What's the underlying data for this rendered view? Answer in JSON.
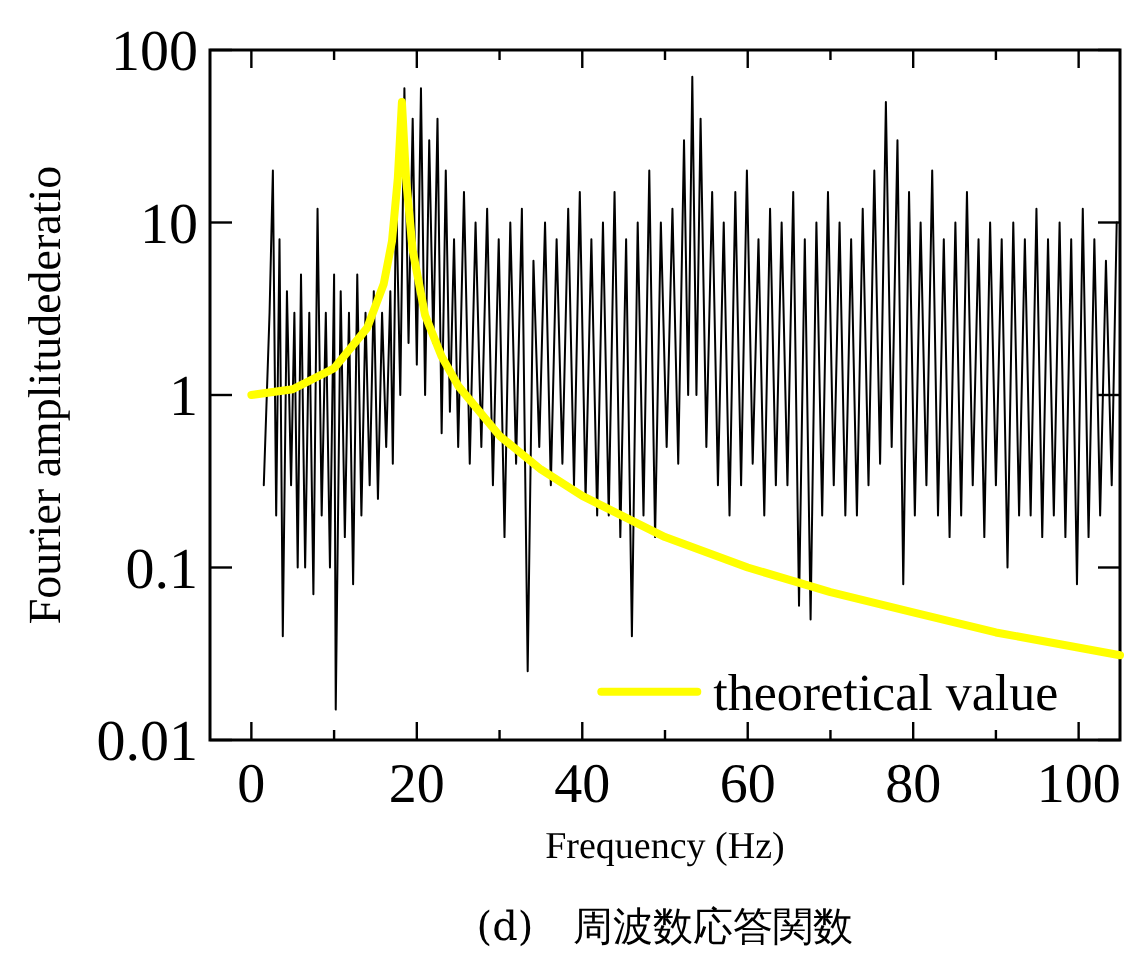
{
  "chart_data": {
    "type": "line",
    "xlabel": "Frequency (Hz)",
    "ylabel": "Fourier amplitudederatio",
    "annotations": [
      "(d)　周波数応答関数"
    ],
    "xlim": [
      -5,
      105
    ],
    "ylim": [
      0.01,
      100
    ],
    "xticks": [
      0,
      {
        "value": 10,
        "label": null
      },
      20,
      {
        "value": 30,
        "label": null
      },
      40,
      {
        "value": 50,
        "label": null
      },
      60,
      {
        "value": 70,
        "label": null
      },
      80,
      {
        "value": 90,
        "label": null
      },
      100
    ],
    "yticks": [
      0.01,
      0.1,
      1,
      10,
      100
    ],
    "log": "y",
    "legend": "bottom right",
    "series": [
      {
        "color": "#000000",
        "x": [
          1.5,
          2.2,
          2.6,
          3,
          3.4,
          3.8,
          4.3,
          4.8,
          5.2,
          5.6,
          6,
          6.5,
          7,
          7.5,
          8,
          8.5,
          9,
          9.5,
          10,
          10.2,
          10.8,
          11.3,
          11.8,
          12.3,
          12.8,
          13.3,
          13.8,
          14.3,
          14.8,
          15.3,
          15.8,
          16.3,
          16.8,
          17.1,
          17.5,
          18,
          18.5,
          19,
          19.5,
          20,
          20.5,
          21,
          21.5,
          22,
          22.5,
          23,
          23.5,
          24,
          24.5,
          25,
          25.7,
          26.4,
          27.1,
          27.8,
          28.5,
          29.2,
          29.9,
          30.6,
          31.3,
          32,
          32.7,
          33.4,
          34.1,
          34.8,
          35.5,
          36.2,
          36.9,
          37.6,
          38.3,
          39,
          39.7,
          40.4,
          41.1,
          41.8,
          42.5,
          43.2,
          43.9,
          44.6,
          45.3,
          46,
          46.7,
          47.4,
          48.1,
          48.8,
          49.5,
          50.2,
          50.9,
          51.6,
          52.3,
          52.8,
          53.3,
          53.8,
          54.3,
          55,
          55.7,
          56.4,
          57.1,
          57.8,
          58.5,
          59.2,
          59.9,
          60.6,
          61.3,
          62,
          62.7,
          63.4,
          64.1,
          64.8,
          65.5,
          66.2,
          66.9,
          67.6,
          68.3,
          69,
          69.7,
          70.4,
          71.1,
          71.8,
          72.5,
          73.2,
          73.9,
          74.6,
          75.3,
          76,
          76.7,
          77.4,
          78.1,
          78.8,
          79.5,
          80.2,
          80.9,
          81.6,
          82.3,
          83,
          83.7,
          84.4,
          85.1,
          85.8,
          86.5,
          87.2,
          87.9,
          88.6,
          89.3,
          90,
          90.7,
          91.4,
          92.1,
          92.8,
          93.5,
          94.2,
          94.9,
          95.6,
          96.3,
          97,
          97.7,
          98.4,
          99.1,
          99.8,
          100.5,
          101.2,
          101.9,
          102.6,
          103.3,
          104,
          104.6
        ],
        "values": [
          0.3,
          3,
          20,
          0.2,
          8,
          0.04,
          4,
          0.3,
          3,
          0.1,
          5,
          0.1,
          3,
          0.07,
          12,
          0.2,
          3,
          0.1,
          5,
          0.015,
          4,
          0.15,
          3,
          0.08,
          5,
          0.2,
          3,
          0.3,
          4,
          0.25,
          3,
          0.5,
          4,
          0.4,
          15,
          1,
          60,
          2,
          40,
          1.5,
          60,
          1,
          30,
          2,
          40,
          0.6,
          20,
          0.8,
          8,
          0.5,
          15,
          0.4,
          10,
          0.5,
          12,
          0.3,
          8,
          0.15,
          10,
          0.4,
          12,
          0.025,
          6,
          0.5,
          10,
          0.3,
          8,
          0.4,
          12,
          0.3,
          15,
          0.25,
          8,
          0.2,
          10,
          0.2,
          15,
          0.15,
          8,
          0.04,
          10,
          0.2,
          20,
          0.15,
          10,
          0.5,
          12,
          0.4,
          30,
          1,
          70,
          1,
          40,
          0.5,
          15,
          0.3,
          10,
          0.2,
          15,
          0.3,
          20,
          0.4,
          8,
          0.2,
          12,
          0.3,
          10,
          0.3,
          15,
          0.06,
          8,
          0.05,
          10,
          0.2,
          15,
          0.3,
          10,
          0.2,
          8,
          0.2,
          12,
          0.3,
          20,
          0.4,
          50,
          0.5,
          30,
          0.08,
          15,
          0.2,
          10,
          0.3,
          20,
          0.2,
          8,
          0.15,
          10,
          0.2,
          15,
          0.3,
          8,
          0.15,
          10,
          0.3,
          8,
          0.1,
          10,
          0.2,
          8,
          0.2,
          12,
          0.15,
          8,
          0.2,
          10,
          0.15,
          8,
          0.08,
          12,
          0.15,
          8,
          0.2,
          6,
          0.3,
          10
        ]
      },
      {
        "name": "theoretical value",
        "color": "#ffff00",
        "x": [
          0,
          5,
          10,
          14,
          16,
          17,
          17.7,
          18.2,
          18.7,
          19.5,
          21,
          23,
          25,
          30,
          35,
          40,
          50,
          60,
          70,
          80,
          90,
          105
        ],
        "values": [
          1,
          1.08,
          1.43,
          2.45,
          4.4,
          7.8,
          18,
          50,
          18,
          6.9,
          2.9,
          1.67,
          1.13,
          0.58,
          0.37,
          0.26,
          0.15,
          0.1,
          0.072,
          0.055,
          0.042,
          0.031
        ]
      }
    ]
  }
}
